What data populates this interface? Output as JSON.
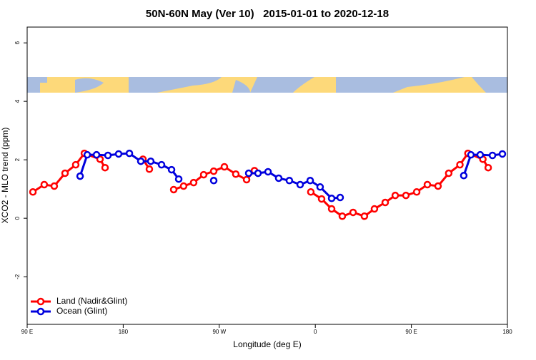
{
  "chart_data": {
    "type": "line",
    "title": "50N-60N May (Ver 10)   2015-01-01 to 2020-12-18",
    "xlabel": "Longitude (deg E)",
    "ylabel": "XCO2 - MLO trend (ppm)",
    "xlim": [
      90,
      540
    ],
    "ylim": [
      -3.63,
      6.54
    ],
    "xticks": [
      {
        "value": 90,
        "label": "90 E"
      },
      180,
      {
        "value": 270,
        "label": "90 W"
      },
      {
        "value": 360,
        "label": "0"
      },
      {
        "value": 450,
        "label": "90 E"
      },
      {
        "value": 540,
        "label": "180"
      }
    ],
    "yticks": [
      -2,
      0,
      2,
      4,
      6
    ],
    "grid": false,
    "legend": "bottom-left",
    "series": [
      {
        "name": "Land (Nadir&Glint)",
        "color": "#ff0000",
        "x": [
          95.4,
          106,
          115.4,
          125.5,
          135.5,
          143.6,
          158.3,
          163,
          null,
          198.5,
          204.5,
          null,
          227.3,
          236.6,
          246,
          255.4,
          264.8,
          274.8,
          285.5,
          295.6,
          303,
          null,
          355.8,
          365.9,
          375.3,
          385.3,
          395.4,
          406,
          415.4,
          425.5,
          434.9,
          444.9,
          455,
          465,
          475,
          485,
          495.5,
          503,
          517,
          522
        ],
        "values": [
          0.9,
          1.15,
          1.1,
          1.54,
          1.83,
          2.22,
          2.02,
          1.73,
          null,
          2.02,
          1.68,
          null,
          0.98,
          1.1,
          1.22,
          1.49,
          1.61,
          1.76,
          1.51,
          1.32,
          1.63,
          null,
          0.9,
          0.66,
          0.32,
          0.07,
          0.2,
          0.07,
          0.32,
          0.54,
          0.78,
          0.78,
          0.9,
          1.15,
          1.1,
          1.54,
          1.83,
          2.22,
          2.02,
          1.73
        ]
      },
      {
        "name": "Ocean (Glint)",
        "color": "#0000dd",
        "x": [
          139.6,
          146.3,
          155,
          165.7,
          175.7,
          185.8,
          196.5,
          205.8,
          215.9,
          225.3,
          232,
          null,
          264.8,
          null,
          297.6,
          306.3,
          315.7,
          325.7,
          335.7,
          345.8,
          355.2,
          364.5,
          375.3,
          383.3,
          null,
          499.1,
          505.8,
          514.5,
          526,
          535.3
        ],
        "values": [
          1.44,
          2.17,
          2.17,
          2.15,
          2.2,
          2.22,
          1.95,
          1.95,
          1.83,
          1.66,
          1.34,
          null,
          1.29,
          null,
          1.54,
          1.54,
          1.59,
          1.37,
          1.29,
          1.15,
          1.29,
          1.07,
          0.68,
          0.71,
          null,
          1.46,
          2.17,
          2.17,
          2.15,
          2.2
        ]
      }
    ]
  }
}
